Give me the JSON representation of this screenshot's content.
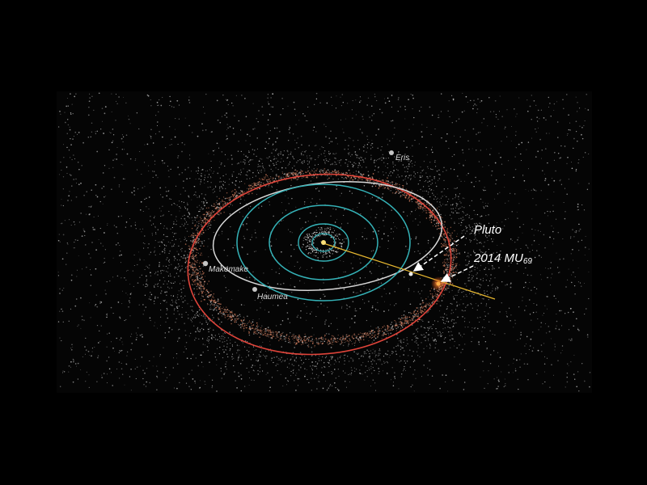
{
  "labels": {
    "eris": "Eris",
    "makemake": "Makemake",
    "haumea": "Haumea",
    "pluto": "Pluto",
    "mu69_main": "2014 MU",
    "mu69_sub": "69"
  },
  "colors": {
    "background": "#000000",
    "space_field": "#050505",
    "kuiper_belt_particles": "#c8785a",
    "scattered_particles": "#bdbdbd",
    "planet_orbits": "#35b3b8",
    "pluto_orbit": "#d8d8d8",
    "mu69_orbit": "#e0443a",
    "trajectory": "#e8b830",
    "pointer_arrows": "#ffffff"
  },
  "icons": [
    "sun-icon",
    "eris-icon",
    "makemake-icon",
    "haumea-icon",
    "pluto-icon",
    "mu69-icon"
  ]
}
